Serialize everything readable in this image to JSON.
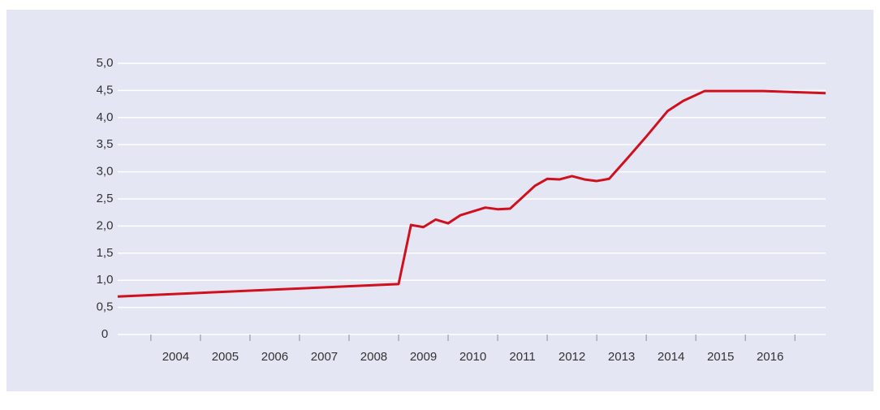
{
  "chart_data": {
    "type": "line",
    "x": [
      2003.33,
      2009.0,
      2009.25,
      2009.5,
      2009.75,
      2010.0,
      2010.25,
      2010.75,
      2011.0,
      2011.25,
      2011.75,
      2012.0,
      2012.25,
      2012.5,
      2012.75,
      2013.0,
      2013.25,
      2013.62,
      2014.0,
      2014.43,
      2014.75,
      2015.18,
      2016.36,
      2017.62
    ],
    "series": [
      {
        "color": "#d0101d",
        "values": [
          0.7,
          0.93,
          2.02,
          1.98,
          2.12,
          2.05,
          2.2,
          2.34,
          2.31,
          2.32,
          2.74,
          2.87,
          2.86,
          2.92,
          2.86,
          2.83,
          2.87,
          3.25,
          3.65,
          4.12,
          4.31,
          4.49,
          4.49,
          4.45
        ]
      }
    ],
    "xlim": [
      2003.33,
      2017.62
    ],
    "xticks": [
      {
        "value": 2004.5,
        "label": "2004"
      },
      {
        "value": 2005.5,
        "label": "2005"
      },
      {
        "value": 2006.5,
        "label": "2006"
      },
      {
        "value": 2007.5,
        "label": "2007"
      },
      {
        "value": 2008.5,
        "label": "2008"
      },
      {
        "value": 2009.5,
        "label": "2009"
      },
      {
        "value": 2010.5,
        "label": "2010"
      },
      {
        "value": 2011.5,
        "label": "2011"
      },
      {
        "value": 2012.5,
        "label": "2012"
      },
      {
        "value": 2013.5,
        "label": "2013"
      },
      {
        "value": 2014.5,
        "label": "2014"
      },
      {
        "value": 2015.5,
        "label": "2015"
      },
      {
        "value": 2016.5,
        "label": "2016"
      }
    ],
    "xtick_marks": [
      2004,
      2005,
      2006,
      2007,
      2008,
      2009,
      2010,
      2011,
      2012,
      2013,
      2014,
      2015,
      2016,
      2017
    ],
    "ylim": [
      0,
      5
    ],
    "yticks": [
      0,
      {
        "value": 0.5,
        "label": "0,5"
      },
      {
        "value": 1,
        "label": "1,0"
      },
      {
        "value": 1.5,
        "label": "1,5"
      },
      {
        "value": 2,
        "label": "2,0"
      },
      {
        "value": 2.5,
        "label": "2,5"
      },
      {
        "value": 3,
        "label": "3,0"
      },
      {
        "value": 3.5,
        "label": "3,5"
      },
      {
        "value": 4,
        "label": "4,0"
      },
      {
        "value": 4.5,
        "label": "4,5"
      },
      {
        "value": 5,
        "label": "5,0"
      }
    ],
    "grid": true
  }
}
